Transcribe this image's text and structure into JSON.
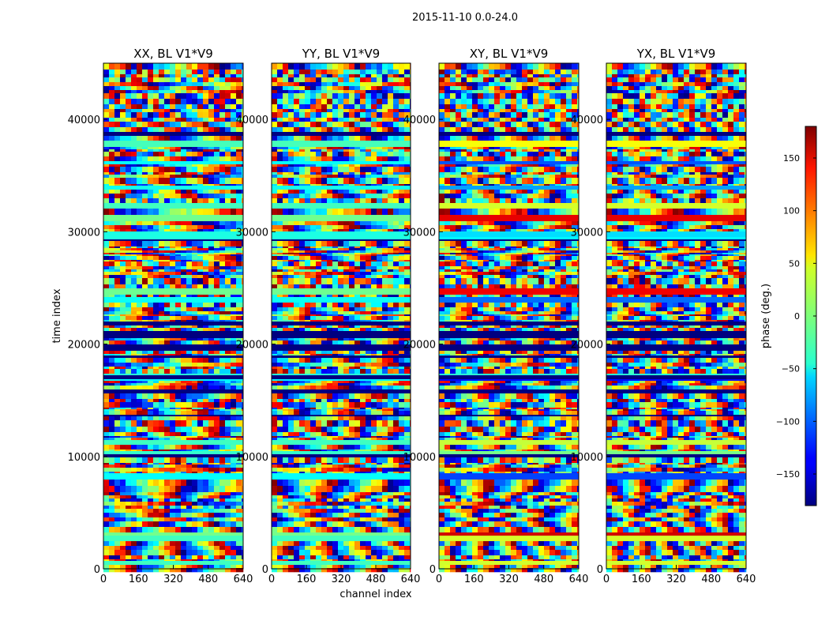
{
  "chart_data": {
    "type": "heatmap",
    "suptitle": "2015-11-10 0.0-24.0",
    "xlabel": "channel index",
    "ylabel": "time index",
    "xlim": [
      0,
      640
    ],
    "ylim": [
      0,
      45000
    ],
    "x_ticks": [
      0,
      160,
      320,
      480,
      640
    ],
    "x_tick_labels": [
      "0",
      "160",
      "320",
      "480",
      "640"
    ],
    "y_ticks": [
      0,
      10000,
      20000,
      30000,
      40000
    ],
    "y_tick_labels": [
      "0",
      "10000",
      "20000",
      "30000",
      "40000"
    ],
    "colormap": "jet",
    "colorbar": {
      "label": "phase (deg.)",
      "vmin": -180,
      "vmax": 180,
      "ticks": [
        -150,
        -100,
        -50,
        0,
        50,
        100,
        150
      ],
      "tick_labels": [
        "−150",
        "−100",
        "−50",
        "0",
        "50",
        "100",
        "150"
      ]
    },
    "panels": [
      {
        "title": "XX, BL V1*V9"
      },
      {
        "title": "YY, BL V1*V9"
      },
      {
        "title": "XY, BL V1*V9"
      },
      {
        "title": "YX, BL V1*V9"
      }
    ]
  }
}
